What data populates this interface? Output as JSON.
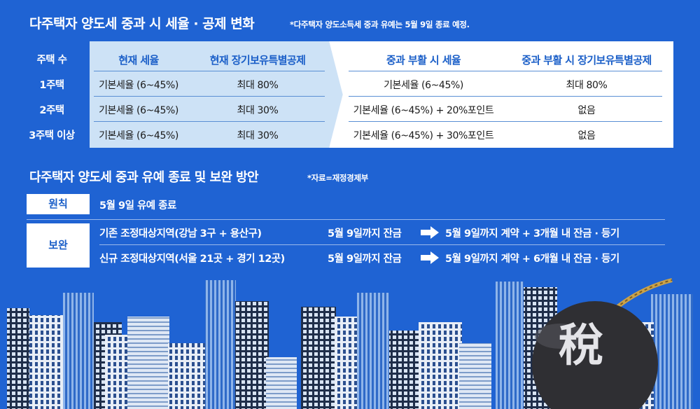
{
  "section1": {
    "title": "다주택자 양도세 중과 시 세율 · 공제 변화",
    "note": "*다주택자 양도소득세 중과 유예는 5월 9일 종료 예정.",
    "row_header_label": "주택 수",
    "columns": [
      "현재 세율",
      "현재 장기보유특별공제",
      "중과 부활 시 세율",
      "중과 부활 시 장기보유특별공제"
    ],
    "rows": [
      {
        "label": "1주택",
        "cur_rate": "기본세율 (6~45%)",
        "cur_deduct": "최대 80%",
        "new_rate": "기본세율 (6~45%)",
        "new_deduct": "최대 80%"
      },
      {
        "label": "2주택",
        "cur_rate": "기본세율 (6~45%)",
        "cur_deduct": "최대 30%",
        "new_rate": "기본세율 (6~45%) + 20%포인트",
        "new_deduct": "없음"
      },
      {
        "label": "3주택 이상",
        "cur_rate": "기본세율 (6~45%)",
        "cur_deduct": "최대 30%",
        "new_rate": "기본세율 (6~45%) + 30%포인트",
        "new_deduct": "없음"
      }
    ]
  },
  "section2": {
    "title": "다주택자 양도세 중과 유예 종료 및 보완 방안",
    "note": "*자료=재정경제부",
    "principle_label": "원칙",
    "principle_text": "5월 9일 유예 종료",
    "supplement_label": "보완",
    "supplement_rows": [
      {
        "area": "기존 조정대상지역(강남 3구 + 용산구)",
        "before": "5월 9일까지 잔금",
        "after": "5월 9일까지 계약 + 3개월 내 잔금 · 등기"
      },
      {
        "area": "신규 조정대상지역(서울 21곳 + 경기 12곳)",
        "before": "5월 9일까지 잔금",
        "after": "5월 9일까지 계약 + 6개월 내 잔금 · 등기"
      }
    ]
  },
  "illustration": {
    "bomb_char": "稅",
    "colors": {
      "background": "#1f63d3",
      "accent": "#1b5fc8",
      "bomb": "#2f2f33"
    }
  }
}
